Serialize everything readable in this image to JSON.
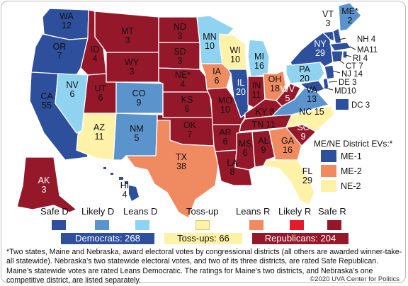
{
  "colors": {
    "safe_d": "#2e4f9c",
    "likely_d": "#5b93cc",
    "leans_d": "#8fd3f0",
    "tossup": "#fdf2a7",
    "leans_r": "#f08a61",
    "likely_r": "#e31b2b",
    "safe_r": "#95182a"
  },
  "states": {
    "WA": "WA\n12",
    "OR": "OR\n7",
    "CA": "CA\n55",
    "NV": "NV\n6",
    "ID": "ID\n4",
    "MT": "MT\n3",
    "WY": "WY\n3",
    "UT": "UT\n6",
    "AZ": "AZ\n11",
    "CO": "CO\n9",
    "NM": "NM\n5",
    "ND": "ND\n3",
    "SD": "SD\n3",
    "NE": "NE*\n4",
    "KS": "KS\n6",
    "OK": "OK\n7",
    "TX": "TX\n38",
    "MN": "MN\n10",
    "IA": "IA\n6",
    "MO": "MO\n10",
    "AR": "AR\n6",
    "LA": "LA\n8",
    "WI": "WI\n10",
    "IL": "IL\n20",
    "MI": "MI\n16",
    "IN": "IN\n11",
    "OH": "OH\n18",
    "KY": "KY 8",
    "TN": "TN 11",
    "MS": "MS\n6",
    "AL": "AL\n9",
    "GA": "GA\n16",
    "FL": "FL\n29",
    "SC": "SC\n9",
    "NC": "NC 15",
    "VA": "VA\n13",
    "WV": "WV\n5",
    "PA": "PA\n20",
    "NY": "NY\n29",
    "ME": "ME*\n2",
    "VT": "VT\n3",
    "AK": "AK\n3",
    "HI": "HI\n4",
    "NH": "NH 4",
    "MA": "MA11",
    "RI": "RI 4",
    "CT": "CT 7",
    "NJ": "NJ 14",
    "DE": "DE 3",
    "MD": "MD10",
    "DC": "DC 3"
  },
  "district_panel": {
    "title": "ME/NE District EVs:*",
    "items": [
      "ME-1",
      "ME-2",
      "NE-2"
    ]
  },
  "legend": {
    "safe_d": "Safe D",
    "likely_d": "Likely D",
    "leans_d": "Leans D",
    "tossup": "Toss-up",
    "leans_r": "Leans R",
    "likely_r": "Likely R",
    "safe_r": "Safe R"
  },
  "totals": {
    "democrats": "Democrats: 268",
    "tossups": "Toss-ups: 66",
    "republicans": "Republicans: 204"
  },
  "footnote": "*Two states, Maine and Nebraska, award electoral votes by congressional districts (all others are awarded winner-take-all statewide). Nebraska’s two statewide electoral votes, and two of its three districts, are rated Safe Republican. Maine’s statewide votes are rated Leans Democratic. The ratings for Maine’s two districts, and Nebraska’s one competitive district, are listed separately.",
  "credit": "©2020 UVA Center for Politics"
}
